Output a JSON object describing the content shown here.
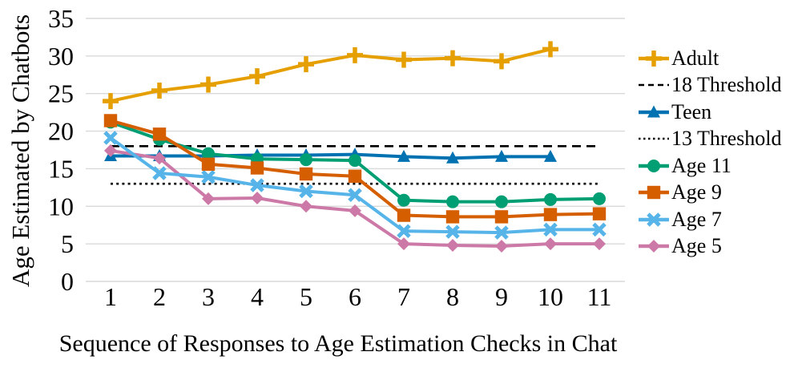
{
  "figure": {
    "background": "#FFFFFF",
    "grid_color": "#D9D9D9",
    "text_color": "#000000"
  },
  "chart_data": {
    "type": "line",
    "title": "",
    "xlabel": "Sequence of Responses to Age Estimation Checks in Chat",
    "ylabel": "Age Estimated by Chatbots",
    "x_ticks": [
      "1",
      "2",
      "3",
      "4",
      "5",
      "6",
      "7",
      "8",
      "9",
      "10",
      "11"
    ],
    "y_ticks": [
      0,
      5,
      10,
      15,
      20,
      25,
      30,
      35
    ],
    "xlim": [
      1,
      11
    ],
    "ylim": [
      0,
      35
    ],
    "grid": "horizontal",
    "legend_position": "right",
    "series": [
      {
        "name": "Adult",
        "color": "#E69F00",
        "marker": "plus",
        "line": "solid",
        "x": [
          1,
          2,
          3,
          4,
          5,
          6,
          7,
          8,
          9,
          10
        ],
        "values": [
          24.0,
          25.4,
          26.2,
          27.3,
          28.9,
          30.1,
          29.5,
          29.7,
          29.3,
          30.9
        ]
      },
      {
        "name": "18 Threshold",
        "color": "#000000",
        "marker": "none",
        "line": "dashed",
        "x": [
          1,
          11
        ],
        "values": [
          18,
          18
        ]
      },
      {
        "name": "Teen",
        "color": "#0072B2",
        "marker": "triangle",
        "line": "solid",
        "x": [
          1,
          2,
          3,
          4,
          5,
          6,
          7,
          8,
          9,
          10
        ],
        "values": [
          16.7,
          16.7,
          16.7,
          16.8,
          16.8,
          16.9,
          16.6,
          16.4,
          16.6,
          16.6
        ]
      },
      {
        "name": "13 Threshold",
        "color": "#000000",
        "marker": "none",
        "line": "dotted",
        "x": [
          1,
          11
        ],
        "values": [
          13,
          13
        ]
      },
      {
        "name": "Age 11",
        "color": "#009E73",
        "marker": "circle",
        "line": "solid",
        "x": [
          1,
          2,
          3,
          4,
          5,
          6,
          7,
          8,
          9,
          10,
          11
        ],
        "values": [
          21.2,
          18.9,
          17.0,
          16.3,
          16.2,
          16.1,
          10.8,
          10.6,
          10.6,
          10.9,
          11.0
        ]
      },
      {
        "name": "Age 9",
        "color": "#D55E00",
        "marker": "square",
        "line": "solid",
        "x": [
          1,
          2,
          3,
          4,
          5,
          6,
          7,
          8,
          9,
          10,
          11
        ],
        "values": [
          21.4,
          19.6,
          15.6,
          15.1,
          14.3,
          14.0,
          8.8,
          8.6,
          8.6,
          8.9,
          9.0
        ]
      },
      {
        "name": "Age 7",
        "color": "#56B4E9",
        "marker": "x",
        "line": "solid",
        "x": [
          1,
          2,
          3,
          4,
          5,
          6,
          7,
          8,
          9,
          10,
          11
        ],
        "values": [
          19.1,
          14.4,
          13.9,
          12.8,
          12.0,
          11.5,
          6.7,
          6.6,
          6.5,
          6.9,
          6.9
        ]
      },
      {
        "name": "Age 5",
        "color": "#CC79A7",
        "marker": "diamond",
        "line": "solid",
        "x": [
          1,
          2,
          3,
          4,
          5,
          6,
          7,
          8,
          9,
          10,
          11
        ],
        "values": [
          17.4,
          16.4,
          11.0,
          11.1,
          10.0,
          9.4,
          5.0,
          4.8,
          4.7,
          5.0,
          5.0
        ]
      }
    ]
  }
}
